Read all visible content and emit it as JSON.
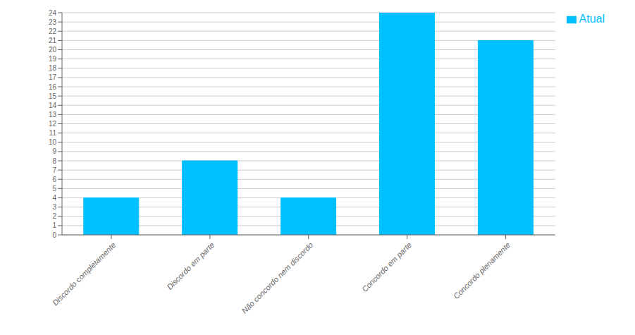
{
  "chart_data": {
    "type": "bar",
    "categories": [
      "Discordo completamente",
      "Discordo em parte",
      "Não concordo nem discordo",
      "Concordo em parte",
      "Concordo plenamente"
    ],
    "series": [
      {
        "name": "Atual",
        "color": "#00BFFF",
        "values": [
          4,
          8,
          4,
          24,
          21
        ]
      }
    ],
    "ylim": [
      0,
      24
    ],
    "yticks": [
      0,
      1,
      2,
      3,
      4,
      5,
      6,
      7,
      8,
      9,
      10,
      11,
      12,
      13,
      14,
      15,
      16,
      17,
      18,
      19,
      20,
      21,
      22,
      23,
      24
    ],
    "grid": true,
    "legend": "right"
  }
}
